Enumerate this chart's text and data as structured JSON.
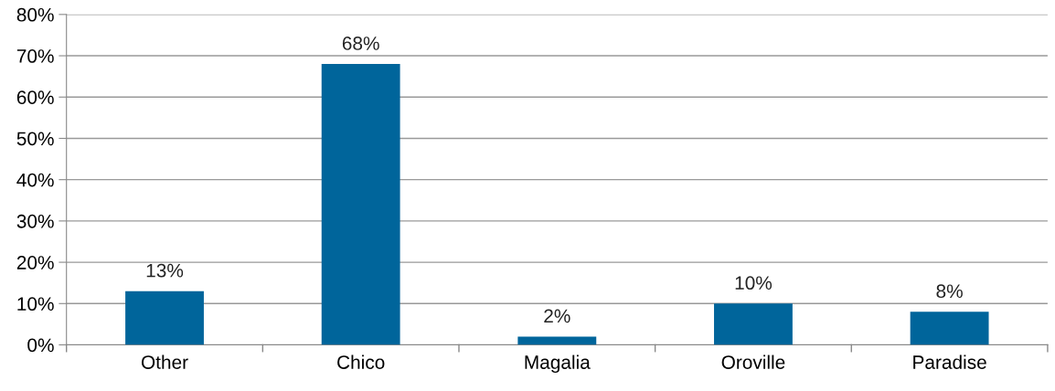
{
  "chart_data": {
    "type": "bar",
    "categories": [
      "Other",
      "Chico",
      "Magalia",
      "Oroville",
      "Paradise"
    ],
    "values": [
      13,
      68,
      2,
      10,
      8
    ],
    "value_labels": [
      "13%",
      "68%",
      "2%",
      "10%",
      "8%"
    ],
    "color": "#00659b",
    "ylim": [
      0,
      80
    ],
    "yticks": [
      {
        "value": 0,
        "label": "0%"
      },
      {
        "value": 10,
        "label": "10%"
      },
      {
        "value": 20,
        "label": "20%"
      },
      {
        "value": 30,
        "label": "30%"
      },
      {
        "value": 40,
        "label": "40%"
      },
      {
        "value": 50,
        "label": "50%"
      },
      {
        "value": 60,
        "label": "60%"
      },
      {
        "value": 70,
        "label": "70%"
      },
      {
        "value": 80,
        "label": "80%"
      }
    ],
    "grid": "y"
  }
}
